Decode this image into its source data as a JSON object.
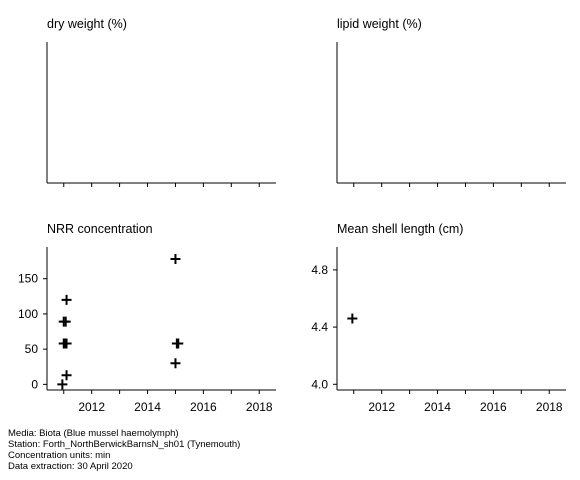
{
  "chart_data": [
    {
      "type": "scatter",
      "title": "dry weight (%)",
      "xlim": [
        2010.4,
        2018.6
      ],
      "xticks": [
        2011,
        2012,
        2013,
        2014,
        2015,
        2016,
        2017,
        2018
      ],
      "xtick_labels": [],
      "yticks": [],
      "points": []
    },
    {
      "type": "scatter",
      "title": "lipid weight (%)",
      "xlim": [
        2010.4,
        2018.6
      ],
      "xticks": [
        2011,
        2012,
        2013,
        2014,
        2015,
        2016,
        2017,
        2018
      ],
      "xtick_labels": [],
      "yticks": [],
      "points": []
    },
    {
      "type": "scatter",
      "title": "NRR concentration",
      "xlim": [
        2010.4,
        2018.6
      ],
      "ylim": [
        -8,
        195
      ],
      "xticks": [
        2011,
        2012,
        2013,
        2014,
        2015,
        2016,
        2017,
        2018
      ],
      "xtick_labels": [
        "2012",
        "2014",
        "2016",
        "2018"
      ],
      "xtick_label_values": [
        2012,
        2014,
        2016,
        2018
      ],
      "yticks": [
        0,
        50,
        100,
        150
      ],
      "ytick_labels": [
        "0",
        "50",
        "100",
        "150"
      ],
      "points": [
        {
          "x": 2010.95,
          "y": 0
        },
        {
          "x": 2011.1,
          "y": 13
        },
        {
          "x": 2011.0,
          "y": 58
        },
        {
          "x": 2011.05,
          "y": 58
        },
        {
          "x": 2011.1,
          "y": 58
        },
        {
          "x": 2011.0,
          "y": 89
        },
        {
          "x": 2011.07,
          "y": 89
        },
        {
          "x": 2011.1,
          "y": 120
        },
        {
          "x": 2015.0,
          "y": 178
        },
        {
          "x": 2015.05,
          "y": 58
        },
        {
          "x": 2015.1,
          "y": 58
        },
        {
          "x": 2015.0,
          "y": 30
        }
      ]
    },
    {
      "type": "scatter",
      "title": "Mean shell length (cm)",
      "xlim": [
        2010.4,
        2018.6
      ],
      "ylim": [
        3.96,
        4.96
      ],
      "xticks": [
        2011,
        2012,
        2013,
        2014,
        2015,
        2016,
        2017,
        2018
      ],
      "xtick_labels": [
        "2012",
        "2014",
        "2016",
        "2018"
      ],
      "xtick_label_values": [
        2012,
        2014,
        2016,
        2018
      ],
      "yticks": [
        4.0,
        4.4,
        4.8
      ],
      "ytick_labels": [
        "4.0",
        "4.4",
        "4.8"
      ],
      "points": [
        {
          "x": 2010.95,
          "y": 4.46
        }
      ]
    }
  ],
  "footer": {
    "media": "Media: Biota (Blue mussel haemolymph)",
    "station": "Station: Forth_NorthBerwickBarnsN_sh01 (Tynemouth)",
    "units": "Concentration units:  min",
    "extraction": "Data extraction: 30 April 2020"
  }
}
